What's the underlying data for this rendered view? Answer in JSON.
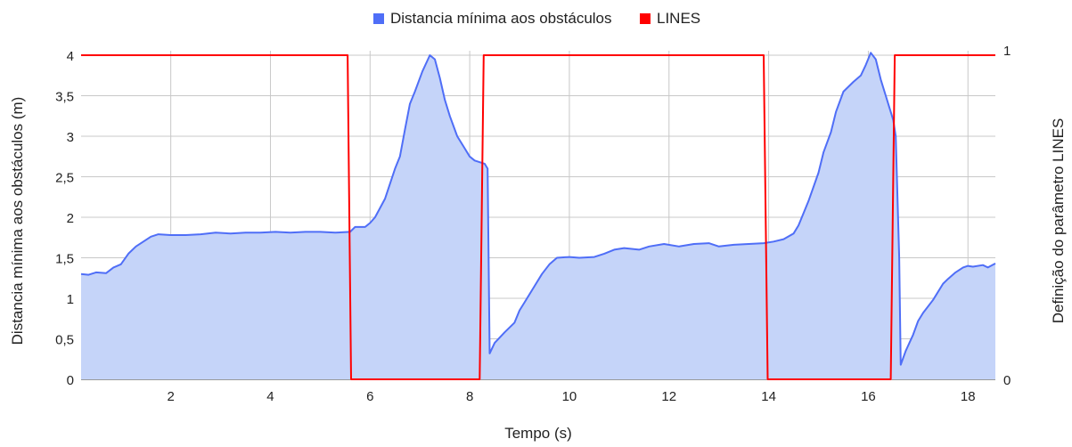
{
  "chart_data": {
    "type": "area",
    "xlabel": "Tempo (s)",
    "ylabel_left": "Distancia mínima aos obstáculos (m)",
    "ylabel_right": "Definição do parâmetro LINES",
    "xlim": [
      0.2,
      18.55
    ],
    "ylim_left": [
      0,
      4
    ],
    "ylim_right": [
      0,
      1
    ],
    "x_ticks": [
      2,
      4,
      6,
      8,
      10,
      12,
      14,
      16,
      18
    ],
    "x_tick_labels": [
      "2",
      "4",
      "6",
      "8",
      "10",
      "12",
      "14",
      "16",
      "18"
    ],
    "y_ticks_left": [
      0,
      0.5,
      1,
      1.5,
      2,
      2.5,
      3,
      3.5,
      4
    ],
    "y_tick_labels_left": [
      "0",
      "0,5",
      "1",
      "1,5",
      "2",
      "2,5",
      "3",
      "3,5",
      "4"
    ],
    "y_ticks_right": [
      0,
      1
    ],
    "y_tick_labels_right": [
      "0",
      "1"
    ],
    "grid": true,
    "legend_position": "top-center",
    "series": [
      {
        "name": "Distancia mínima aos obstáculos",
        "axis": "left",
        "type": "area",
        "color": "#4f6ef7",
        "fill": "#c5d4f9",
        "points": [
          [
            0.2,
            1.3
          ],
          [
            0.35,
            1.29
          ],
          [
            0.5,
            1.32
          ],
          [
            0.7,
            1.31
          ],
          [
            0.85,
            1.38
          ],
          [
            1.0,
            1.42
          ],
          [
            1.15,
            1.55
          ],
          [
            1.3,
            1.64
          ],
          [
            1.45,
            1.7
          ],
          [
            1.6,
            1.76
          ],
          [
            1.75,
            1.79
          ],
          [
            2.0,
            1.78
          ],
          [
            2.3,
            1.78
          ],
          [
            2.6,
            1.79
          ],
          [
            2.9,
            1.81
          ],
          [
            3.2,
            1.8
          ],
          [
            3.5,
            1.81
          ],
          [
            3.8,
            1.81
          ],
          [
            4.1,
            1.82
          ],
          [
            4.4,
            1.81
          ],
          [
            4.7,
            1.82
          ],
          [
            5.0,
            1.82
          ],
          [
            5.3,
            1.81
          ],
          [
            5.6,
            1.82
          ],
          [
            5.7,
            1.88
          ],
          [
            5.9,
            1.88
          ],
          [
            6.0,
            1.93
          ],
          [
            6.1,
            2.0
          ],
          [
            6.3,
            2.23
          ],
          [
            6.5,
            2.6
          ],
          [
            6.6,
            2.75
          ],
          [
            6.7,
            3.08
          ],
          [
            6.8,
            3.4
          ],
          [
            6.9,
            3.55
          ],
          [
            7.05,
            3.8
          ],
          [
            7.2,
            4.0
          ],
          [
            7.3,
            3.95
          ],
          [
            7.4,
            3.72
          ],
          [
            7.5,
            3.45
          ],
          [
            7.6,
            3.25
          ],
          [
            7.75,
            3.0
          ],
          [
            7.9,
            2.85
          ],
          [
            8.0,
            2.75
          ],
          [
            8.1,
            2.7
          ],
          [
            8.3,
            2.66
          ],
          [
            8.36,
            2.6
          ],
          [
            8.4,
            0.32
          ],
          [
            8.5,
            0.45
          ],
          [
            8.7,
            0.58
          ],
          [
            8.9,
            0.7
          ],
          [
            9.0,
            0.85
          ],
          [
            9.1,
            0.95
          ],
          [
            9.3,
            1.15
          ],
          [
            9.45,
            1.3
          ],
          [
            9.6,
            1.42
          ],
          [
            9.75,
            1.5
          ],
          [
            10.0,
            1.51
          ],
          [
            10.2,
            1.5
          ],
          [
            10.5,
            1.51
          ],
          [
            10.7,
            1.55
          ],
          [
            10.9,
            1.6
          ],
          [
            11.1,
            1.62
          ],
          [
            11.4,
            1.6
          ],
          [
            11.6,
            1.64
          ],
          [
            11.9,
            1.67
          ],
          [
            12.2,
            1.64
          ],
          [
            12.5,
            1.67
          ],
          [
            12.8,
            1.68
          ],
          [
            13.0,
            1.64
          ],
          [
            13.3,
            1.66
          ],
          [
            13.6,
            1.67
          ],
          [
            13.9,
            1.68
          ],
          [
            14.1,
            1.7
          ],
          [
            14.3,
            1.73
          ],
          [
            14.5,
            1.8
          ],
          [
            14.6,
            1.9
          ],
          [
            14.8,
            2.2
          ],
          [
            15.0,
            2.55
          ],
          [
            15.1,
            2.8
          ],
          [
            15.25,
            3.05
          ],
          [
            15.35,
            3.3
          ],
          [
            15.5,
            3.55
          ],
          [
            15.7,
            3.67
          ],
          [
            15.85,
            3.75
          ],
          [
            15.95,
            3.88
          ],
          [
            16.05,
            4.03
          ],
          [
            16.15,
            3.95
          ],
          [
            16.25,
            3.7
          ],
          [
            16.35,
            3.5
          ],
          [
            16.5,
            3.2
          ],
          [
            16.55,
            3.0
          ],
          [
            16.62,
            1.5
          ],
          [
            16.65,
            0.18
          ],
          [
            16.75,
            0.35
          ],
          [
            16.9,
            0.55
          ],
          [
            17.0,
            0.72
          ],
          [
            17.1,
            0.82
          ],
          [
            17.3,
            0.98
          ],
          [
            17.5,
            1.18
          ],
          [
            17.6,
            1.24
          ],
          [
            17.75,
            1.32
          ],
          [
            17.9,
            1.38
          ],
          [
            18.0,
            1.4
          ],
          [
            18.1,
            1.39
          ],
          [
            18.3,
            1.41
          ],
          [
            18.4,
            1.38
          ],
          [
            18.55,
            1.43
          ]
        ]
      },
      {
        "name": "LINES",
        "axis": "right",
        "type": "line",
        "color": "#ff0000",
        "points": [
          [
            0.2,
            1
          ],
          [
            5.55,
            1
          ],
          [
            5.62,
            0
          ],
          [
            8.2,
            0
          ],
          [
            8.28,
            1
          ],
          [
            13.9,
            1
          ],
          [
            13.98,
            0
          ],
          [
            16.45,
            0
          ],
          [
            16.53,
            1
          ],
          [
            18.55,
            1
          ]
        ]
      }
    ]
  }
}
